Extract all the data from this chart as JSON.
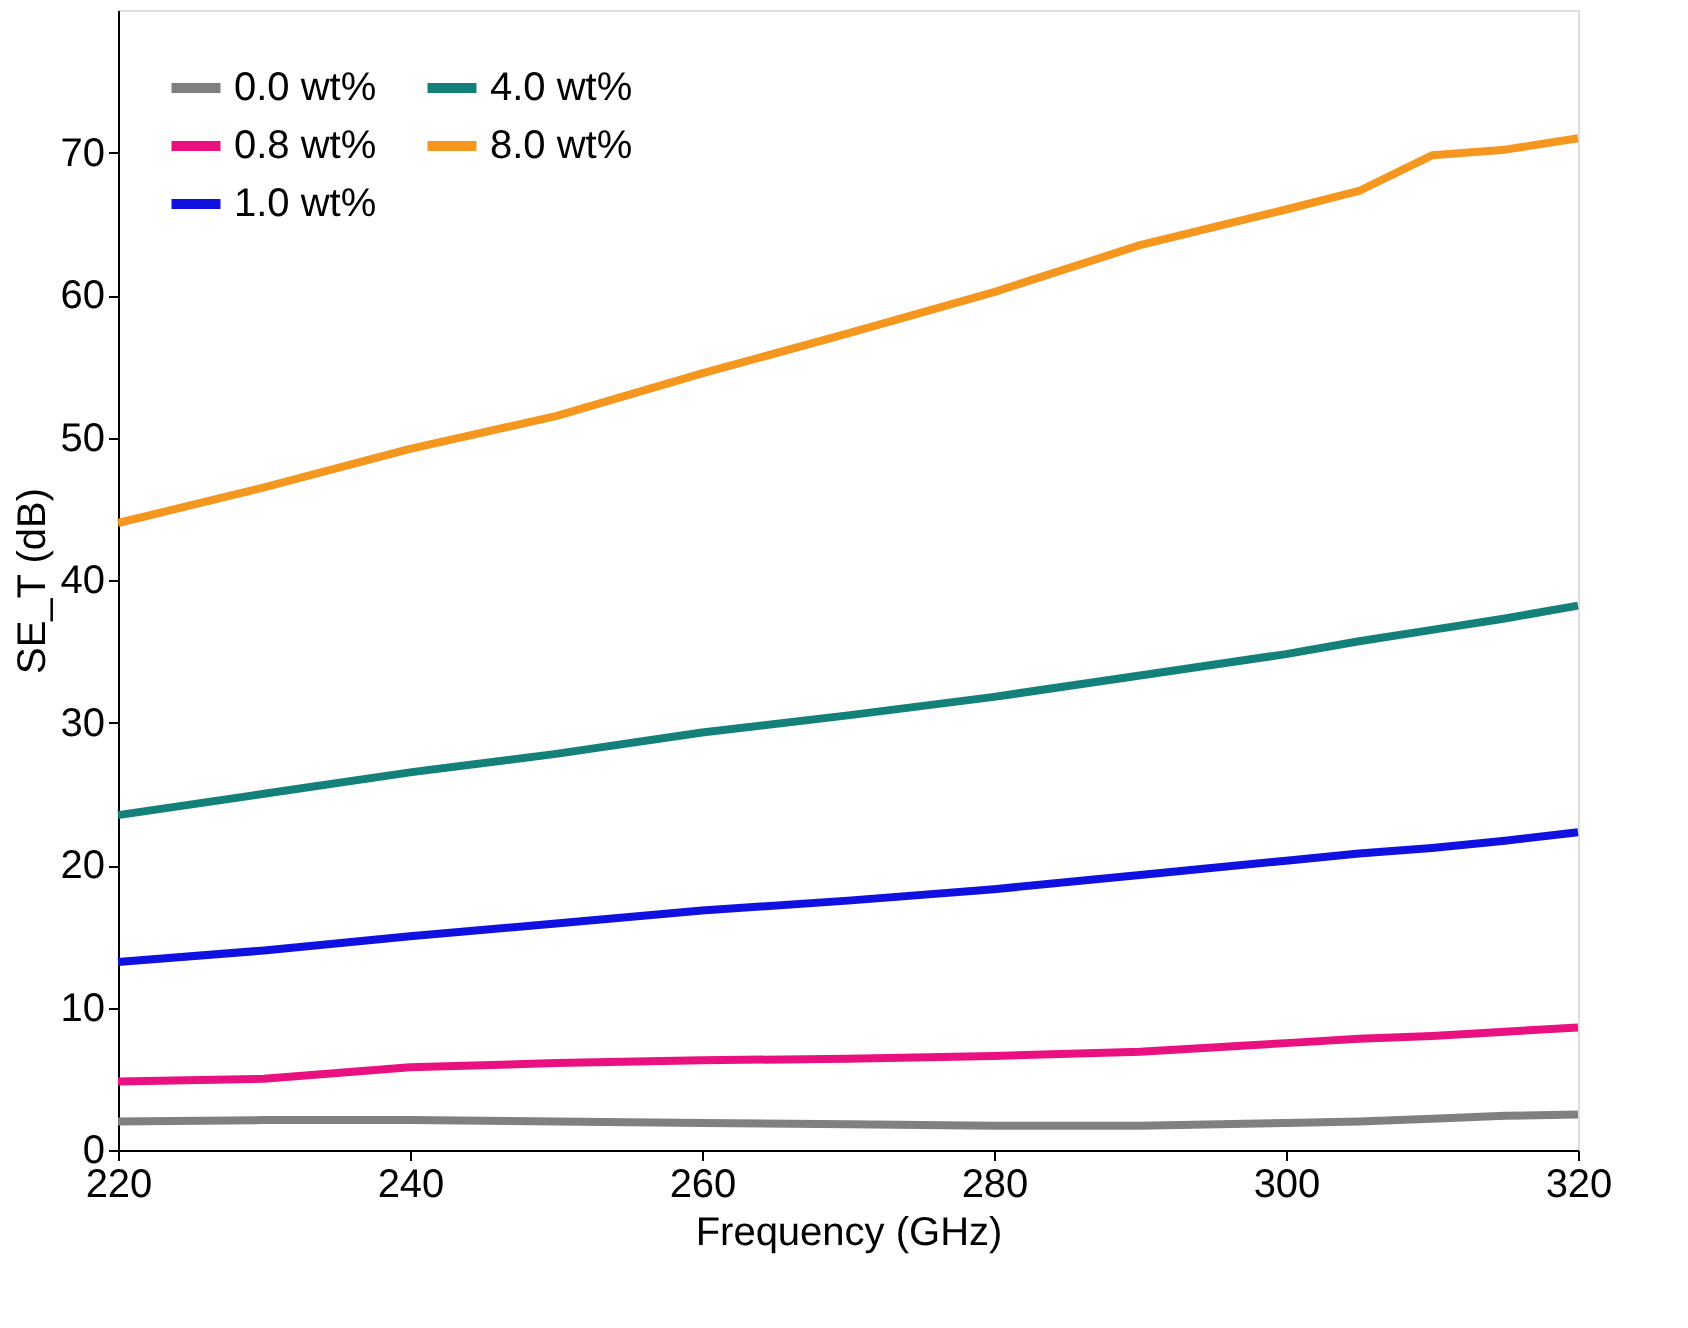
{
  "chart_data": {
    "type": "line",
    "xlabel": "Frequency (GHz)",
    "ylabel": "SE_T (dB)",
    "xlim": [
      220,
      320
    ],
    "ylim": [
      0,
      80
    ],
    "xticks": [
      220,
      240,
      260,
      280,
      300,
      320
    ],
    "yticks": [
      0,
      10,
      20,
      30,
      40,
      50,
      60,
      70
    ],
    "grid": false,
    "legend": "top left",
    "line_style": "solid",
    "marker": "none",
    "x": [
      220,
      230,
      240,
      250,
      260,
      270,
      280,
      290,
      300,
      305,
      310,
      315,
      320
    ],
    "series": [
      {
        "name": "0.0 wt%",
        "color": "#808080",
        "values": [
          2.0,
          2.1,
          2.1,
          2.0,
          1.9,
          1.8,
          1.7,
          1.7,
          1.9,
          2.0,
          2.2,
          2.4,
          2.5
        ]
      },
      {
        "name": "0.8 wt%",
        "color": "#e8117f",
        "values": [
          4.8,
          5.0,
          5.8,
          6.1,
          6.3,
          6.4,
          6.6,
          6.9,
          7.5,
          7.8,
          8.0,
          8.3,
          8.6
        ]
      },
      {
        "name": "1.0 wt%",
        "color": "#1010e0",
        "values": [
          13.2,
          14.0,
          15.0,
          15.9,
          16.8,
          17.5,
          18.3,
          19.3,
          20.3,
          20.8,
          21.2,
          21.7,
          22.3
        ]
      },
      {
        "name": "4.0 wt%",
        "color": "#138079",
        "values": [
          23.5,
          25.0,
          26.5,
          27.8,
          29.3,
          30.5,
          31.8,
          33.3,
          34.8,
          35.7,
          36.5,
          37.3,
          38.2
        ]
      },
      {
        "name": "8.0 wt%",
        "color": "#f5961e",
        "values": [
          44.0,
          46.5,
          49.2,
          51.5,
          54.5,
          57.3,
          60.2,
          63.5,
          66.0,
          67.3,
          69.8,
          70.2,
          71.0
        ]
      }
    ]
  }
}
